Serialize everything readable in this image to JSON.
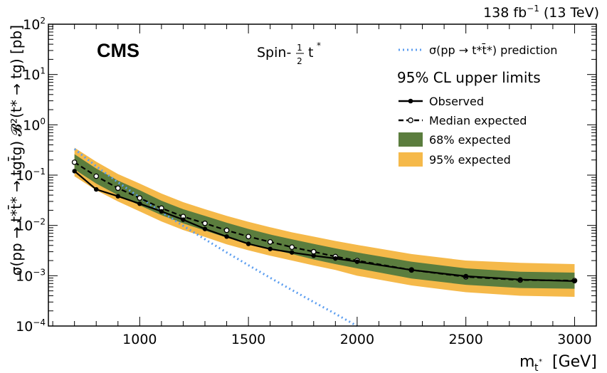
{
  "chart_data": {
    "type": "line",
    "experiment_label": "CMS",
    "lumi_label": "138 fb",
    "lumi_exponent": "−1",
    "energy_label": "(13 TeV)",
    "model_label": "Spin-",
    "model_fraction_num": "1",
    "model_fraction_den": "2",
    "model_particle": "t",
    "model_particle_star": "*",
    "xlabel": "m",
    "xlabel_sub": "t",
    "xlabel_sub_star": "*",
    "xlabel_unit": "[GeV]",
    "ylabel": "σ(pp → t*t̄* → tgt̄g) 𝓑²(t* → tg) [pb]",
    "xlim": [
      580,
      3100
    ],
    "ylim": [
      0.0001,
      100
    ],
    "yscale": "log",
    "x_ticks": [
      1000,
      1500,
      2000,
      2500,
      3000
    ],
    "x_tick_labels": [
      "1000",
      "1500",
      "2000",
      "2500",
      "3000"
    ],
    "y_ticks": [
      0.0001,
      0.001,
      0.01,
      0.1,
      1,
      10,
      100
    ],
    "y_tick_bases": [
      "10",
      "10",
      "10",
      "10",
      "10",
      "10",
      "10"
    ],
    "y_tick_exponents": [
      "−4",
      "−3",
      "−2",
      "−1",
      "0",
      "1",
      "2"
    ],
    "legend_title": "95% CL upper limits",
    "legend_placement": "top-right",
    "legend": {
      "prediction": "σ(pp → t*t̄*) prediction",
      "observed": "Observed",
      "expected": "Median expected",
      "band68": "68% expected",
      "band95": "95% expected"
    },
    "colors": {
      "band68": "#5b7d3e",
      "band95": "#f5b94a",
      "prediction": "#5c9ef0",
      "observed": "#000000",
      "expected": "#000000"
    },
    "series": [
      {
        "name": "Observed",
        "x": [
          700,
          800,
          900,
          1000,
          1100,
          1200,
          1300,
          1400,
          1500,
          1600,
          1700,
          1800,
          1900,
          2000,
          2250,
          2500,
          2750,
          3000
        ],
        "y": [
          0.12,
          0.052,
          0.038,
          0.027,
          0.019,
          0.013,
          0.0085,
          0.006,
          0.0043,
          0.0034,
          0.0029,
          0.0025,
          0.0022,
          0.0019,
          0.0013,
          0.00098,
          0.00084,
          0.00078
        ]
      },
      {
        "name": "Median expected",
        "x": [
          700,
          800,
          900,
          1000,
          1100,
          1200,
          1300,
          1400,
          1500,
          1600,
          1700,
          1800,
          1900,
          2000,
          2250,
          2500,
          2750,
          3000
        ],
        "y": [
          0.18,
          0.095,
          0.055,
          0.035,
          0.022,
          0.015,
          0.011,
          0.008,
          0.006,
          0.0047,
          0.0037,
          0.003,
          0.0024,
          0.002,
          0.0013,
          0.00095,
          0.00082,
          0.0008
        ]
      },
      {
        "name": "68% expected",
        "x": [
          700,
          800,
          900,
          1000,
          1100,
          1200,
          1300,
          1400,
          1500,
          1600,
          1700,
          1800,
          1900,
          2000,
          2250,
          2500,
          2750,
          3000
        ],
        "low": [
          0.13,
          0.068,
          0.04,
          0.025,
          0.016,
          0.011,
          0.0079,
          0.0057,
          0.0043,
          0.0034,
          0.0027,
          0.0021,
          0.0017,
          0.0014,
          0.00088,
          0.00066,
          0.00057,
          0.00055
        ],
        "high": [
          0.26,
          0.135,
          0.078,
          0.05,
          0.031,
          0.021,
          0.0155,
          0.0113,
          0.0085,
          0.0066,
          0.0053,
          0.0043,
          0.0035,
          0.0029,
          0.0019,
          0.0014,
          0.0012,
          0.00115
        ]
      },
      {
        "name": "95% expected",
        "x": [
          700,
          800,
          900,
          1000,
          1100,
          1200,
          1300,
          1400,
          1500,
          1600,
          1700,
          1800,
          1900,
          2000,
          2250,
          2500,
          2750,
          3000
        ],
        "low": [
          0.095,
          0.05,
          0.03,
          0.019,
          0.012,
          0.0081,
          0.0059,
          0.0042,
          0.0032,
          0.0025,
          0.002,
          0.0016,
          0.0013,
          0.001,
          0.00064,
          0.00047,
          0.0004,
          0.00038
        ],
        "high": [
          0.35,
          0.185,
          0.105,
          0.068,
          0.043,
          0.029,
          0.021,
          0.0155,
          0.0118,
          0.0092,
          0.0073,
          0.006,
          0.0049,
          0.0041,
          0.0027,
          0.002,
          0.0018,
          0.0017
        ]
      },
      {
        "name": "σ(pp → t*t̄*) prediction",
        "x": [
          700,
          800,
          900,
          1000,
          1100,
          1200,
          1300,
          1400,
          1500,
          1600,
          1700,
          1800,
          1900,
          2000
        ],
        "y": [
          0.33,
          0.15,
          0.072,
          0.036,
          0.0185,
          0.0098,
          0.0053,
          0.0029,
          0.00162,
          0.00091,
          0.00052,
          0.0003,
          0.000175,
          0.0001
        ]
      }
    ]
  }
}
